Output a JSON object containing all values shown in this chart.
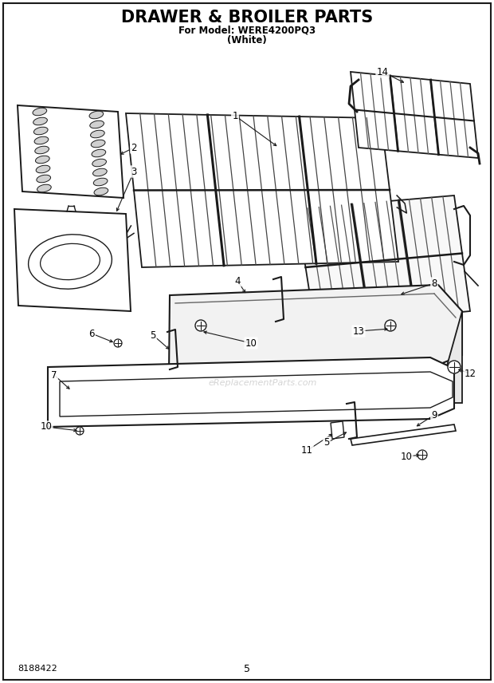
{
  "title": "DRAWER & BROILER PARTS",
  "subtitle1": "For Model: WERE4200PQ3",
  "subtitle2": "(White)",
  "doc_number": "8188422",
  "page_number": "5",
  "watermark": "eReplacementParts.com",
  "bg_color": "#ffffff",
  "line_color": "#1a1a1a",
  "title_fontsize": 15,
  "subtitle_fontsize": 8.5,
  "label_fontsize": 8.5
}
